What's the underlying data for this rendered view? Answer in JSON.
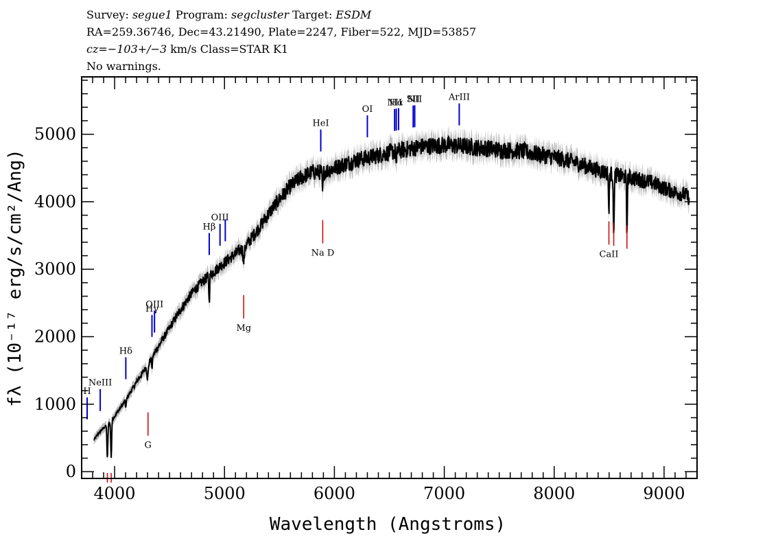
{
  "header": {
    "line1": {
      "survey_label": "Survey: ",
      "survey": "segue1",
      "program_label": " Program: ",
      "program": "segcluster",
      "target_label": " Target: ",
      "target": "ESDM"
    },
    "line2": "RA=259.36746, Dec=43.21490, Plate=2247, Fiber=522, MJD=53857",
    "line3": {
      "cz": "cz=−103+/−3",
      "rest": " km/s Class=STAR K1"
    },
    "line4": "No warnings."
  },
  "chart_data": {
    "type": "line",
    "xlabel": "Wavelength (Angstroms)",
    "ylabel": "fλ (10⁻¹⁷ erg/s/cm²/Ang)",
    "xlim": [
      3700,
      9300
    ],
    "ylim": [
      -100,
      5850
    ],
    "xticks": [
      4000,
      5000,
      6000,
      7000,
      8000,
      9000
    ],
    "yticks": [
      0,
      1000,
      2000,
      3000,
      4000,
      5000
    ],
    "grid": false,
    "colors": {
      "flux": "#000000",
      "error_band": "#bdbdbd",
      "emission": "#0000cc",
      "absorption": "#cc0000"
    },
    "flux_knots": {
      "x": [
        3810,
        3850,
        3900,
        3950,
        4000,
        4100,
        4200,
        4300,
        4400,
        4500,
        4600,
        4700,
        4800,
        4900,
        5000,
        5100,
        5200,
        5300,
        5400,
        5500,
        5600,
        5700,
        5800,
        5900,
        6000,
        6100,
        6200,
        6300,
        6400,
        6500,
        6600,
        6700,
        6800,
        6900,
        7000,
        7100,
        7200,
        7300,
        7400,
        7500,
        7600,
        7700,
        7800,
        7900,
        8000,
        8100,
        8200,
        8300,
        8400,
        8500,
        8600,
        8700,
        8800,
        8900,
        9000,
        9100,
        9200,
        9230
      ],
      "y": [
        470,
        560,
        650,
        720,
        820,
        1060,
        1330,
        1580,
        1860,
        2130,
        2400,
        2640,
        2820,
        2960,
        3100,
        3230,
        3360,
        3580,
        3820,
        4040,
        4230,
        4360,
        4440,
        4440,
        4500,
        4560,
        4620,
        4650,
        4690,
        4730,
        4760,
        4790,
        4820,
        4830,
        4840,
        4830,
        4820,
        4800,
        4790,
        4770,
        4760,
        4750,
        4720,
        4690,
        4660,
        4620,
        4580,
        4520,
        4470,
        4420,
        4380,
        4350,
        4320,
        4280,
        4200,
        4140,
        4100,
        4050
      ]
    },
    "absorption_features": [
      {
        "center": 3934,
        "depth": 500,
        "width": 6
      },
      {
        "center": 3969,
        "depth": 550,
        "width": 6
      },
      {
        "center": 4102,
        "depth": 120,
        "width": 5
      },
      {
        "center": 4300,
        "depth": 200,
        "width": 8
      },
      {
        "center": 4341,
        "depth": 150,
        "width": 5
      },
      {
        "center": 4861,
        "depth": 400,
        "width": 5
      },
      {
        "center": 5175,
        "depth": 220,
        "width": 8
      },
      {
        "center": 5893,
        "depth": 300,
        "width": 6
      },
      {
        "center": 6563,
        "depth": 230,
        "width": 5
      },
      {
        "center": 8498,
        "depth": 600,
        "width": 5
      },
      {
        "center": 8542,
        "depth": 1000,
        "width": 5
      },
      {
        "center": 8662,
        "depth": 850,
        "width": 5
      }
    ],
    "emission_lines": [
      {
        "label": "H",
        "x": 3750
      },
      {
        "label": "NeIII",
        "x": 3869
      },
      {
        "label": "Hδ",
        "x": 4102
      },
      {
        "label": "Hγ",
        "x": 4340
      },
      {
        "label": "OIII",
        "x": 4363
      },
      {
        "label": "Hβ",
        "x": 4861
      },
      {
        "label": "OIII",
        "x": 4959
      },
      {
        "label": "",
        "x": 5007
      },
      {
        "label": "HeI",
        "x": 5876
      },
      {
        "label": "OI",
        "x": 6300
      },
      {
        "label": "NII",
        "x": 6548
      },
      {
        "label": "Hα",
        "x": 6563
      },
      {
        "label": "",
        "x": 6584
      },
      {
        "label": "SII",
        "x": 6717
      },
      {
        "label": "NII",
        "x": 6731
      },
      {
        "label": "ArIII",
        "x": 7136
      }
    ],
    "absorption_lines": [
      {
        "label": "",
        "x": 3934
      },
      {
        "label": "",
        "x": 3969
      },
      {
        "label": "G",
        "x": 4304
      },
      {
        "label": "Mg",
        "x": 5175
      },
      {
        "label": "Na D",
        "x": 5894
      },
      {
        "label": "CaII",
        "x": 8498
      },
      {
        "label": "",
        "x": 8542
      },
      {
        "label": "",
        "x": 8662
      }
    ]
  }
}
